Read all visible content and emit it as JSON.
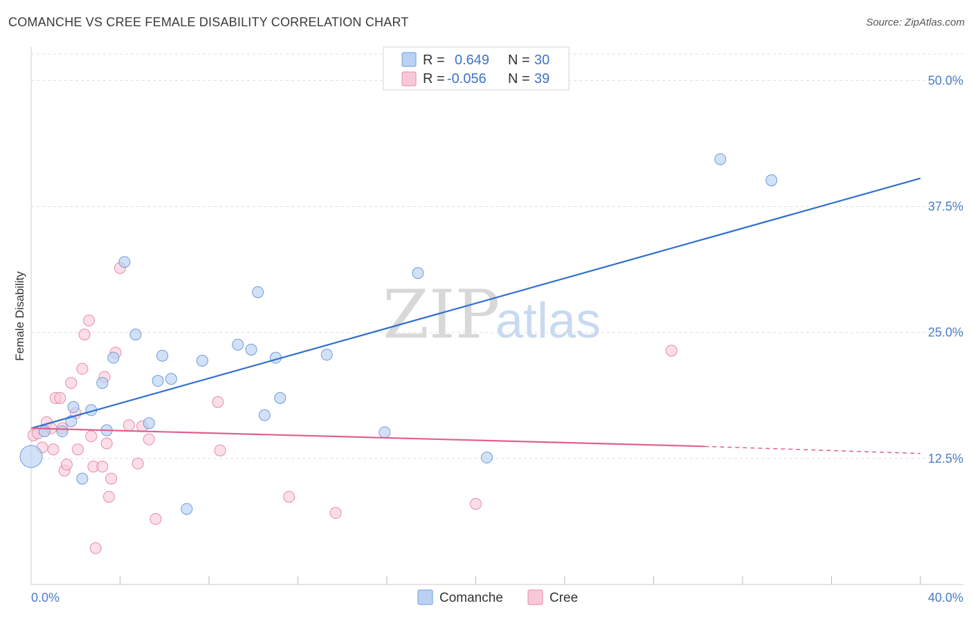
{
  "title": "COMANCHE VS CREE FEMALE DISABILITY CORRELATION CHART",
  "source": "Source: ZipAtlas.com",
  "watermark": {
    "zip": "ZIP",
    "atlas": "atlas"
  },
  "legend": {
    "rows": [
      {
        "r_label": "R =",
        "r_value": "0.649",
        "n_label": "N =",
        "n_value": "30"
      },
      {
        "r_label": "R =",
        "r_value": "-0.056",
        "n_label": "N =",
        "n_value": "39"
      }
    ]
  },
  "bottom_legend": [
    "Comanche",
    "Cree"
  ],
  "colors": {
    "comanche_fill": "#b9d1f3",
    "comanche_stroke": "#6f9bd8",
    "comanche_line": "#2e6fd0",
    "cree_fill": "#f8c8d8",
    "cree_stroke": "#e88aa8",
    "cree_line": "#e0608a",
    "tick_label": "#4a7cc9",
    "grid": "#dddddd"
  },
  "chart_data": {
    "type": "scatter",
    "title": "COMANCHE VS CREE FEMALE DISABILITY CORRELATION CHART",
    "xlabel": "",
    "ylabel": "Female Disability",
    "xlim": [
      0,
      40
    ],
    "ylim": [
      0,
      52.5
    ],
    "x_tick_labels": [
      "0.0%",
      "40.0%"
    ],
    "y_ticks": [
      12.5,
      25.0,
      37.5,
      50.0
    ],
    "y_tick_labels": [
      "12.5%",
      "25.0%",
      "37.5%",
      "50.0%"
    ],
    "grid": true,
    "legend_position": "top-center",
    "series": [
      {
        "name": "Comanche",
        "r": 0.649,
        "n": 30,
        "trend": {
          "x": [
            0.0,
            40.0
          ],
          "y": [
            15.5,
            40.3
          ]
        },
        "points": [
          [
            0.0,
            12.7
          ],
          [
            0.6,
            15.2
          ],
          [
            1.4,
            15.2
          ],
          [
            1.8,
            16.2
          ],
          [
            1.9,
            17.6
          ],
          [
            2.3,
            10.5
          ],
          [
            2.7,
            17.3
          ],
          [
            3.2,
            20.0
          ],
          [
            3.4,
            15.3
          ],
          [
            3.7,
            22.5
          ],
          [
            4.2,
            32.0
          ],
          [
            4.7,
            24.8
          ],
          [
            5.3,
            16.0
          ],
          [
            5.7,
            20.2
          ],
          [
            5.9,
            22.7
          ],
          [
            6.3,
            20.4
          ],
          [
            7.0,
            7.5
          ],
          [
            7.7,
            22.2
          ],
          [
            9.3,
            23.8
          ],
          [
            9.9,
            23.3
          ],
          [
            10.2,
            29.0
          ],
          [
            10.5,
            16.8
          ],
          [
            11.0,
            22.5
          ],
          [
            11.2,
            18.5
          ],
          [
            13.3,
            22.8
          ],
          [
            15.9,
            15.1
          ],
          [
            17.4,
            30.9
          ],
          [
            20.5,
            12.6
          ],
          [
            31.0,
            42.2
          ],
          [
            33.3,
            40.1
          ]
        ]
      },
      {
        "name": "Cree",
        "r": -0.056,
        "n": 39,
        "trend": {
          "x": [
            0.0,
            30.3
          ],
          "y": [
            15.5,
            13.7
          ]
        },
        "trend_dashed": {
          "x": [
            30.3,
            40.0
          ],
          "y": [
            13.7,
            13.0
          ]
        },
        "points": [
          [
            0.1,
            14.8
          ],
          [
            0.3,
            15.0
          ],
          [
            0.5,
            13.6
          ],
          [
            0.6,
            15.2
          ],
          [
            0.7,
            16.1
          ],
          [
            0.9,
            15.5
          ],
          [
            1.0,
            13.4
          ],
          [
            1.1,
            18.5
          ],
          [
            1.3,
            18.5
          ],
          [
            1.4,
            15.5
          ],
          [
            1.5,
            11.3
          ],
          [
            1.6,
            11.9
          ],
          [
            1.8,
            20.0
          ],
          [
            2.0,
            17.0
          ],
          [
            2.1,
            13.4
          ],
          [
            2.3,
            21.4
          ],
          [
            2.4,
            24.8
          ],
          [
            2.6,
            26.2
          ],
          [
            2.7,
            14.7
          ],
          [
            2.8,
            11.7
          ],
          [
            2.9,
            3.6
          ],
          [
            3.2,
            11.7
          ],
          [
            3.3,
            20.6
          ],
          [
            3.4,
            14.0
          ],
          [
            3.5,
            8.7
          ],
          [
            3.6,
            10.5
          ],
          [
            3.8,
            23.0
          ],
          [
            4.0,
            31.4
          ],
          [
            4.4,
            15.8
          ],
          [
            4.8,
            12.0
          ],
          [
            5.0,
            15.7
          ],
          [
            5.3,
            14.4
          ],
          [
            5.6,
            6.5
          ],
          [
            8.4,
            18.1
          ],
          [
            8.5,
            13.3
          ],
          [
            11.6,
            8.7
          ],
          [
            13.7,
            7.1
          ],
          [
            20.0,
            8.0
          ],
          [
            28.8,
            23.2
          ]
        ]
      }
    ]
  }
}
